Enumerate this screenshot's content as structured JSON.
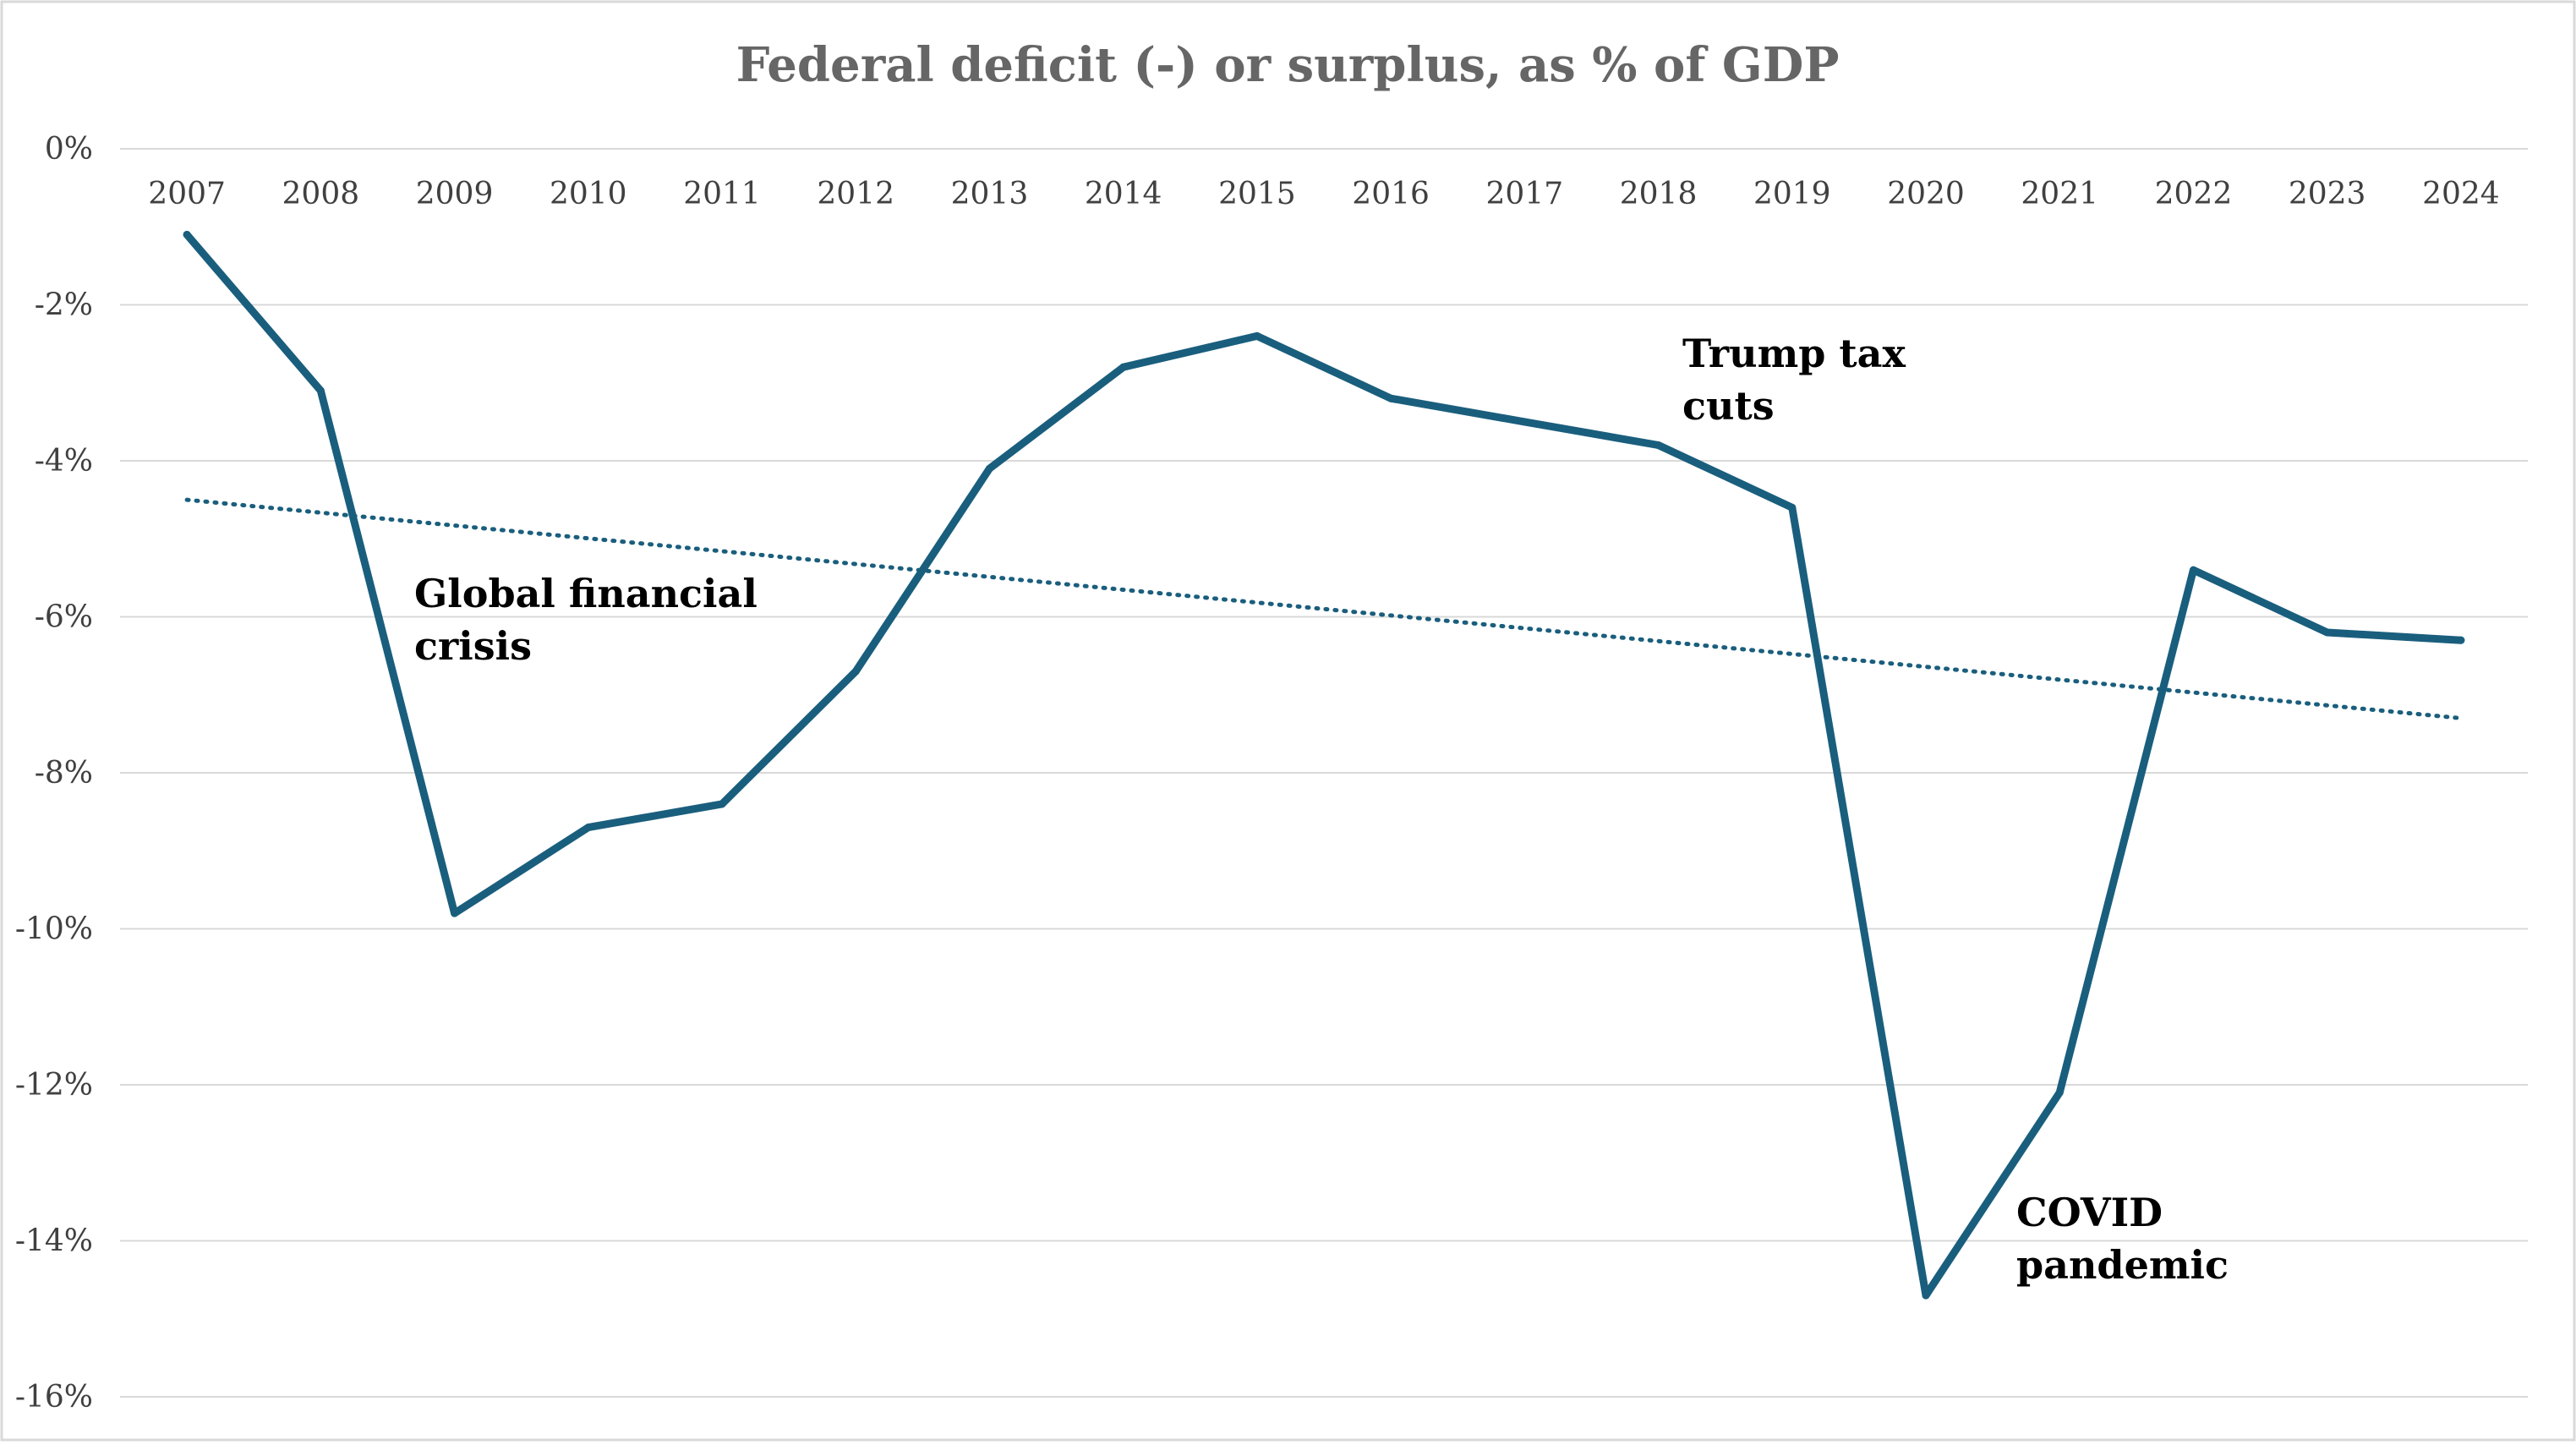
{
  "chart_data": {
    "type": "line",
    "title": "Federal deficit (-) or surplus, as % of GDP",
    "xlabel": "",
    "ylabel": "",
    "x": [
      "2007",
      "2008",
      "2009",
      "2010",
      "2011",
      "2012",
      "2013",
      "2014",
      "2015",
      "2016",
      "2017",
      "2018",
      "2019",
      "2020",
      "2021",
      "2022",
      "2023",
      "2024"
    ],
    "series": [
      {
        "values": [
          -1.1,
          -3.1,
          -9.8,
          -8.7,
          -8.4,
          -6.7,
          -4.1,
          -2.8,
          -2.4,
          -3.2,
          -3.5,
          -3.8,
          -4.6,
          -14.7,
          -12.1,
          -5.4,
          -6.2,
          -6.3
        ],
        "color": "#1a5e7d"
      }
    ],
    "trendline": {
      "style": "dotted",
      "color": "#1a5e7d",
      "start": -4.5,
      "end": -7.3
    },
    "yticks": [
      "0%",
      "-2%",
      "-4%",
      "-6%",
      "-8%",
      "-10%",
      "-12%",
      "-14%",
      "-16%"
    ],
    "ylim": [
      -16,
      0
    ],
    "x_axis_position": "top",
    "grid": true,
    "legend": "none",
    "annotations": [
      {
        "lines": [
          "Global financial",
          "crisis"
        ],
        "year": "2009"
      },
      {
        "lines": [
          "Trump tax",
          "cuts"
        ],
        "year": "2018"
      },
      {
        "lines": [
          "COVID",
          "pandemic"
        ],
        "year": "2021"
      }
    ]
  }
}
